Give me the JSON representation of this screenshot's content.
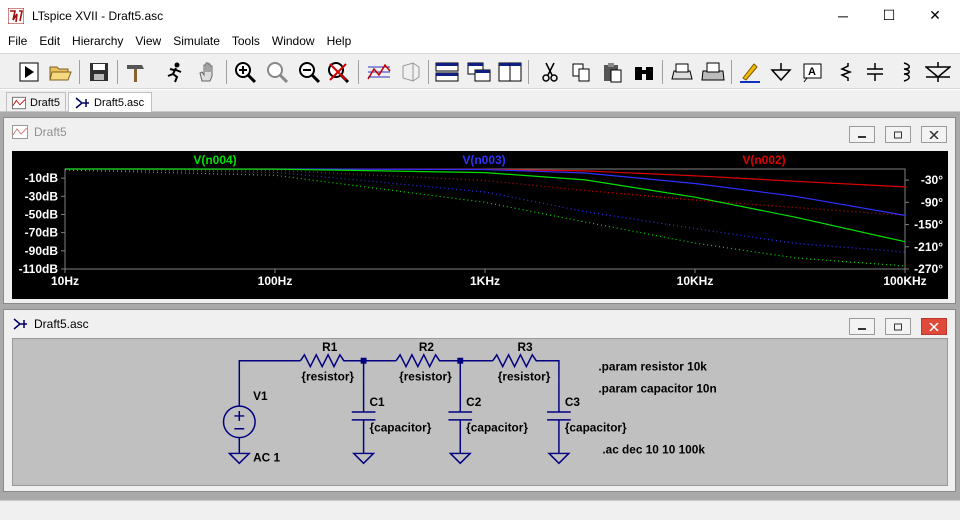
{
  "window": {
    "title": "LTspice XVII - Draft5.asc"
  },
  "window_controls": {
    "minimize": "─",
    "maximize": "☐",
    "close": "✕"
  },
  "menu": [
    "File",
    "Edit",
    "Hierarchy",
    "View",
    "Simulate",
    "Tools",
    "Window",
    "Help"
  ],
  "toolbar": [
    "run-icon",
    "open-folder-icon",
    "save-icon",
    "hammer-icon",
    "running-man-icon",
    "hand-pan-icon",
    "zoom-in-icon",
    "zoom-area-icon",
    "zoom-out-icon",
    "zoom-cancel-icon",
    "autorange-icon",
    "3d-view-icon",
    "tile-horizontal-icon",
    "cascade-icon",
    "tile-vertical-icon",
    "cut-icon",
    "copy-icon",
    "paste-icon",
    "find-icon",
    "print-preview-icon",
    "print-icon",
    "pencil-icon",
    "ground-icon",
    "label-net-icon",
    "resistor-icon",
    "capacitor-icon",
    "inductor-icon",
    "diode-icon"
  ],
  "tabs": [
    {
      "label": "Draft5",
      "icon": "waveform-icon",
      "active": false
    },
    {
      "label": "Draft5.asc",
      "icon": "schematic-icon",
      "active": true
    }
  ],
  "waveform_window": {
    "title": "Draft5",
    "traces": [
      {
        "label": "V(n004)",
        "color": "#00e000"
      },
      {
        "label": "V(n003)",
        "color": "#3030ff"
      },
      {
        "label": "V(n002)",
        "color": "#e00000"
      }
    ]
  },
  "schematic_window": {
    "title": "Draft5.asc",
    "components": [
      {
        "ref": "R1",
        "value": "{resistor}"
      },
      {
        "ref": "R2",
        "value": "{resistor}"
      },
      {
        "ref": "R3",
        "value": "{resistor}"
      },
      {
        "ref": "C1",
        "value": "{capacitor}"
      },
      {
        "ref": "C2",
        "value": "{capacitor}"
      },
      {
        "ref": "C3",
        "value": "{capacitor}"
      },
      {
        "ref": "V1",
        "value": "AC 1"
      }
    ],
    "directives": [
      ".param resistor 10k",
      ".param capacitor 10n",
      ".ac dec 10 10 100k"
    ]
  },
  "chart_data": {
    "type": "line",
    "title": "",
    "xlabel": "",
    "ylabel": "",
    "x_scale": "log",
    "x_ticks": [
      "10Hz",
      "100Hz",
      "1KHz",
      "10KHz",
      "100KHz"
    ],
    "xlim": [
      10,
      100000
    ],
    "y_ticks": [
      "-10dB",
      "-30dB",
      "-50dB",
      "-70dB",
      "-90dB",
      "-110dB"
    ],
    "ylim": [
      -110,
      0
    ],
    "y2_ticks": [
      "-30°",
      "-90°",
      "-150°",
      "-210°",
      "-270°"
    ],
    "y2lim": [
      -270,
      0
    ],
    "series": [
      {
        "name": "V(n002)",
        "color": "#e00000",
        "x": [
          10,
          100,
          1000,
          3000,
          10000,
          30000,
          100000
        ],
        "y": [
          0,
          0,
          -0.3,
          -2.1,
          -7.5,
          -13.5,
          -19.7
        ],
        "phase": [
          -0.4,
          -3.6,
          -31,
          -58,
          -84,
          -104,
          -125
        ]
      },
      {
        "name": "V(n003)",
        "color": "#3030ff",
        "x": [
          10,
          100,
          1000,
          3000,
          10000,
          30000,
          100000
        ],
        "y": [
          0,
          0,
          -0.6,
          -4.4,
          -16,
          -30,
          -51
        ],
        "phase": [
          -0.9,
          -9,
          -62,
          -115,
          -161,
          -201,
          -224
        ]
      },
      {
        "name": "V(n004)",
        "color": "#00e000",
        "x": [
          10,
          100,
          1000,
          3000,
          10000,
          30000,
          100000
        ],
        "y": [
          0,
          -0.1,
          -4,
          -12,
          -31,
          -53,
          -80
        ],
        "phase": [
          -3,
          -17,
          -90,
          -143,
          -200,
          -240,
          -262
        ]
      }
    ]
  }
}
